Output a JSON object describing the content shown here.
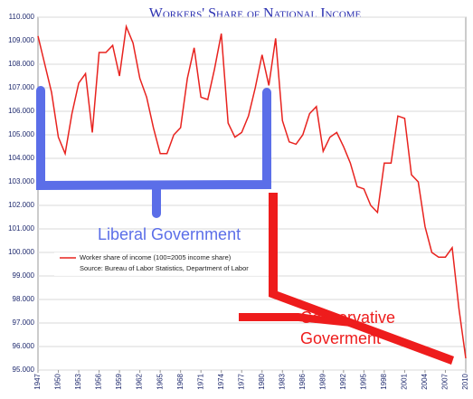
{
  "chart_data": {
    "type": "line",
    "title": "Workers' Share of National Income",
    "x": [
      1947,
      1948,
      1949,
      1950,
      1951,
      1952,
      1953,
      1954,
      1955,
      1956,
      1957,
      1958,
      1959,
      1960,
      1961,
      1962,
      1963,
      1964,
      1965,
      1966,
      1967,
      1968,
      1969,
      1970,
      1971,
      1972,
      1973,
      1974,
      1975,
      1976,
      1977,
      1978,
      1979,
      1980,
      1981,
      1982,
      1983,
      1984,
      1985,
      1986,
      1987,
      1988,
      1989,
      1990,
      1991,
      1992,
      1993,
      1994,
      1995,
      1996,
      1997,
      1998,
      1999,
      2000,
      2001,
      2002,
      2003,
      2004,
      2005,
      2006,
      2007,
      2008,
      2009,
      2010
    ],
    "series": [
      {
        "name": "Worker share of income (100=2005 income share)",
        "color": "#e8231f",
        "values": [
          109.2,
          108.0,
          106.8,
          104.9,
          104.2,
          105.9,
          107.2,
          107.6,
          105.1,
          108.5,
          108.5,
          108.8,
          107.5,
          109.6,
          108.9,
          107.4,
          106.6,
          105.3,
          104.2,
          104.2,
          105.0,
          105.3,
          107.4,
          108.7,
          106.6,
          106.5,
          107.8,
          109.3,
          105.5,
          104.9,
          105.1,
          105.8,
          107.0,
          108.4,
          107.1,
          109.1,
          105.6,
          104.7,
          104.6,
          105.0,
          105.9,
          106.2,
          104.3,
          104.9,
          105.1,
          104.5,
          103.8,
          102.8,
          102.7,
          102.0,
          101.7,
          103.8,
          103.8,
          105.8,
          105.7,
          103.3,
          103.0,
          101.1,
          100.0,
          99.8,
          99.8,
          100.2,
          97.6,
          95.5
        ]
      }
    ],
    "source": "Source: Bureau of Labor Statistics, Department of Labor",
    "annotations": [
      "Liberal Government",
      "Conservative",
      "Goverment"
    ],
    "xlim": [
      1947,
      2010
    ],
    "xticks": [
      1947,
      1950,
      1953,
      1956,
      1959,
      1962,
      1965,
      1968,
      1971,
      1974,
      1977,
      1980,
      1983,
      1986,
      1989,
      1992,
      1995,
      1998,
      2001,
      2004,
      2007,
      2010
    ],
    "ylim": [
      95,
      110
    ],
    "yticks": [
      {
        "value": 95,
        "label": "95.000"
      },
      {
        "value": 96,
        "label": "96.000"
      },
      {
        "value": 97,
        "label": "97.000"
      },
      {
        "value": 98,
        "label": "98.000"
      },
      {
        "value": 99,
        "label": "99.000"
      },
      {
        "value": 100,
        "label": "100.000"
      },
      {
        "value": 101,
        "label": "101.000"
      },
      {
        "value": 102,
        "label": "102.000"
      },
      {
        "value": 103,
        "label": "103.000"
      },
      {
        "value": 104,
        "label": "104.000"
      },
      {
        "value": 105,
        "label": "105.000"
      },
      {
        "value": 106,
        "label": "106.000"
      },
      {
        "value": 107,
        "label": "107.000"
      },
      {
        "value": 108,
        "label": "108.000"
      },
      {
        "value": 109,
        "label": "109.000"
      },
      {
        "value": 110,
        "label": "110.000"
      }
    ],
    "grid": true
  }
}
